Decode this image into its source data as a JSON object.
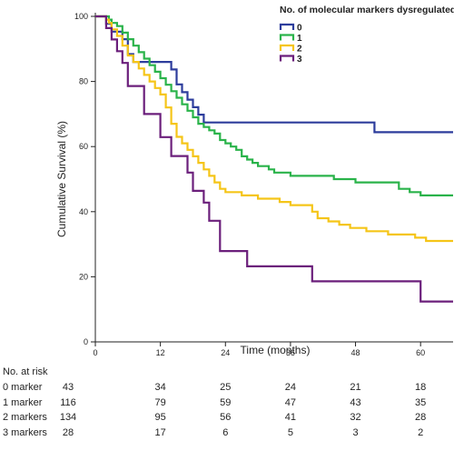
{
  "chart_data": {
    "type": "line",
    "step": true,
    "xlabel": "Time (months)",
    "ylabel": "Cumulative Survival (%)",
    "xlim": [
      0,
      66
    ],
    "ylim": [
      0,
      100
    ],
    "xticks": [
      0,
      12,
      24,
      36,
      48,
      60
    ],
    "yticks": [
      0,
      20,
      40,
      60,
      80,
      100
    ],
    "grid": false,
    "legend": {
      "title": "No. of molecular markers dysregulated",
      "position": "top-right"
    },
    "series": [
      {
        "name": "0",
        "color": "#2d3d9c",
        "x": [
          0,
          2,
          3,
          5,
          6,
          7,
          8,
          9,
          14,
          15,
          16,
          17,
          18,
          19,
          20,
          51.5,
          66
        ],
        "y": [
          100,
          97.7,
          95.3,
          93,
          88.4,
          86,
          86,
          86,
          83.7,
          79.1,
          76.7,
          74.4,
          72.1,
          69.8,
          67.4,
          64.4,
          64.4
        ]
      },
      {
        "name": "1",
        "color": "#2ab34a",
        "x": [
          0,
          2.5,
          3,
          4,
          5,
          6,
          7,
          8,
          9,
          10,
          11,
          12,
          13,
          14,
          15,
          16,
          17,
          18,
          19,
          20,
          21,
          22,
          23,
          24,
          25,
          26,
          27,
          28,
          29,
          30,
          32,
          33,
          36,
          40,
          44,
          48,
          56,
          58,
          60,
          66
        ],
        "y": [
          100,
          99,
          98,
          97,
          95,
          93,
          91,
          89,
          87,
          85,
          83,
          81,
          79,
          77,
          75,
          73,
          71,
          69,
          67,
          66,
          65,
          64,
          62,
          61,
          60,
          59,
          57,
          56,
          55,
          54,
          53,
          52,
          51,
          51,
          50,
          49,
          47,
          46,
          45,
          45
        ]
      },
      {
        "name": "2",
        "color": "#f5c518",
        "x": [
          0,
          2,
          2.5,
          3,
          4,
          5,
          6,
          7,
          8,
          9,
          10,
          11,
          12,
          13,
          14,
          15,
          16,
          17,
          18,
          19,
          20,
          21,
          22,
          23,
          24,
          27,
          30,
          34,
          36,
          40,
          41,
          43,
          45,
          47,
          50,
          52,
          54,
          57,
          59,
          61,
          66
        ],
        "y": [
          100,
          99,
          98,
          96,
          94,
          91,
          88,
          86,
          84,
          82,
          80,
          78,
          76,
          72,
          67,
          63,
          61,
          59,
          57,
          55,
          53,
          51,
          49,
          47,
          46,
          45,
          44,
          43,
          42,
          40,
          38,
          37,
          36,
          35,
          34,
          34,
          33,
          33,
          32,
          31,
          31
        ]
      },
      {
        "name": "3",
        "color": "#6b1f7b",
        "x": [
          0,
          2,
          3,
          4,
          5,
          6,
          9,
          12,
          14,
          17,
          18,
          20,
          21,
          23,
          25,
          28,
          36,
          40,
          60,
          66
        ],
        "y": [
          100,
          96.4,
          92.9,
          89.3,
          85.7,
          78.6,
          70,
          62.9,
          57.1,
          52,
          46.4,
          42.8,
          37.2,
          27.9,
          27.9,
          23.2,
          23.2,
          18.6,
          12.4,
          12.4
        ]
      }
    ]
  },
  "risk_table": {
    "title": "No. at risk",
    "time_points": [
      0,
      12,
      24,
      36,
      48,
      60
    ],
    "rows": [
      {
        "label": "0 marker",
        "values": [
          "43",
          "34",
          "25",
          "24",
          "21",
          "18"
        ]
      },
      {
        "label": "1 marker",
        "values": [
          "116",
          "79",
          "59",
          "47",
          "43",
          "35"
        ]
      },
      {
        "label": "2 markers",
        "values": [
          "134",
          "95",
          "56",
          "41",
          "32",
          "28"
        ]
      },
      {
        "label": "3 markers",
        "values": [
          "28",
          "17",
          "6",
          "5",
          "3",
          "2"
        ]
      }
    ]
  }
}
